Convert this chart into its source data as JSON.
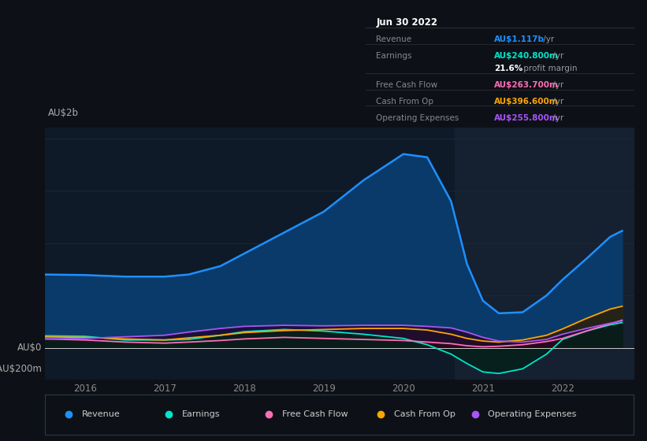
{
  "background_color": "#0d1117",
  "plot_bg_color": "#0e1a28",
  "shaded_region_color": "#152030",
  "grid_color": "#1a2a3a",
  "years": [
    2015.5,
    2016.0,
    2016.5,
    2017.0,
    2017.3,
    2017.7,
    2018.0,
    2018.5,
    2019.0,
    2019.5,
    2020.0,
    2020.3,
    2020.6,
    2020.8,
    2021.0,
    2021.2,
    2021.5,
    2021.8,
    2022.0,
    2022.3,
    2022.6,
    2022.75
  ],
  "revenue": [
    700,
    695,
    680,
    680,
    700,
    780,
    900,
    1100,
    1300,
    1600,
    1850,
    1820,
    1400,
    800,
    450,
    330,
    340,
    500,
    650,
    850,
    1060,
    1117
  ],
  "earnings": [
    115,
    110,
    75,
    75,
    80,
    120,
    155,
    175,
    160,
    130,
    90,
    30,
    -60,
    -150,
    -230,
    -245,
    -200,
    -60,
    80,
    160,
    220,
    241
  ],
  "free_cash_flow": [
    85,
    75,
    55,
    45,
    55,
    70,
    85,
    100,
    90,
    80,
    70,
    55,
    40,
    20,
    10,
    15,
    30,
    60,
    90,
    160,
    230,
    264
  ],
  "cash_from_op": [
    105,
    100,
    85,
    75,
    95,
    120,
    145,
    165,
    175,
    185,
    185,
    170,
    130,
    90,
    65,
    55,
    75,
    120,
    180,
    280,
    370,
    397
  ],
  "operating_expenses": [
    85,
    90,
    105,
    120,
    150,
    185,
    205,
    215,
    210,
    215,
    215,
    205,
    190,
    150,
    100,
    65,
    55,
    80,
    130,
    185,
    235,
    256
  ],
  "revenue_color": "#1e90ff",
  "earnings_color": "#00e5cc",
  "fcf_color": "#ff6eb4",
  "cashop_color": "#ffa500",
  "opex_color": "#a855f7",
  "revenue_fill": "#0a3a6a",
  "xmin": 2015.5,
  "xmax": 2022.9,
  "ymin": -300,
  "ymax": 2100,
  "xticks": [
    2016,
    2017,
    2018,
    2019,
    2020,
    2021,
    2022
  ],
  "shaded_start": 2020.65,
  "info_box": {
    "title": "Jun 30 2022",
    "rows": [
      {
        "label": "Revenue",
        "value": "AU$1.117b",
        "suffix": " /yr",
        "value_color": "#1e90ff"
      },
      {
        "label": "Earnings",
        "value": "AU$240.800m",
        "suffix": " /yr",
        "value_color": "#00e5cc"
      },
      {
        "label": "",
        "value": "21.6%",
        "suffix": " profit margin",
        "value_color": "#ffffff"
      },
      {
        "label": "Free Cash Flow",
        "value": "AU$263.700m",
        "suffix": " /yr",
        "value_color": "#ff6eb4"
      },
      {
        "label": "Cash From Op",
        "value": "AU$396.600m",
        "suffix": " /yr",
        "value_color": "#ffa500"
      },
      {
        "label": "Operating Expenses",
        "value": "AU$255.800m",
        "suffix": " /yr",
        "value_color": "#a855f7"
      }
    ]
  },
  "legend": [
    {
      "label": "Revenue",
      "color": "#1e90ff"
    },
    {
      "label": "Earnings",
      "color": "#00e5cc"
    },
    {
      "label": "Free Cash Flow",
      "color": "#ff6eb4"
    },
    {
      "label": "Cash From Op",
      "color": "#ffa500"
    },
    {
      "label": "Operating Expenses",
      "color": "#a855f7"
    }
  ]
}
